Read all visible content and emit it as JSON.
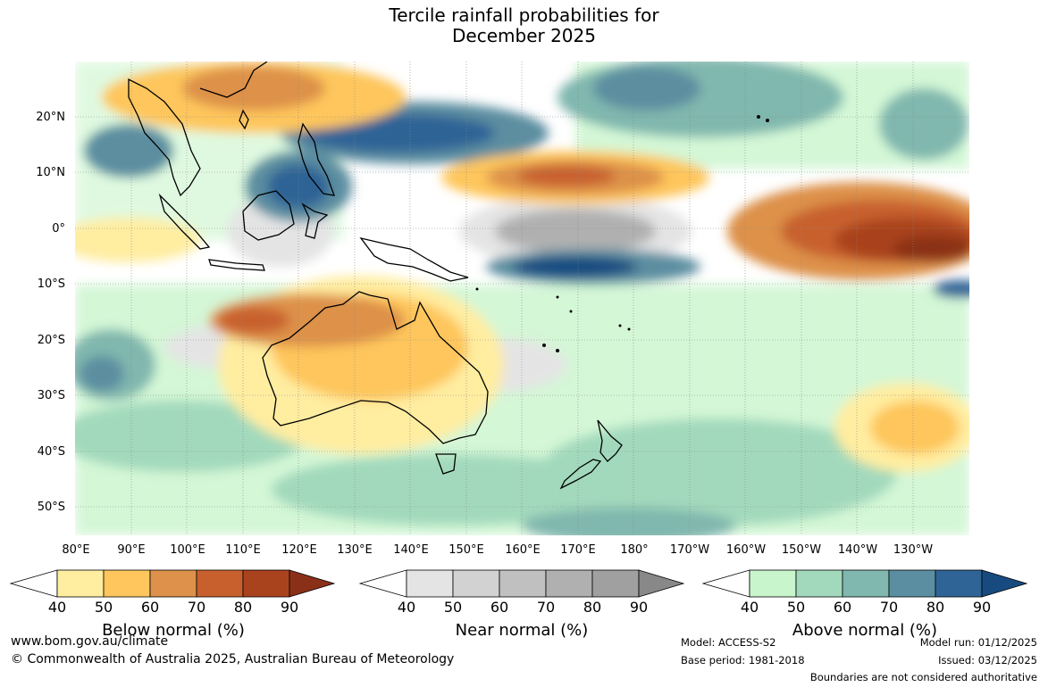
{
  "title": {
    "line1": "Tercile rainfall probabilities for",
    "line2": "December 2025"
  },
  "map": {
    "lat_ticks": [
      "20°N",
      "10°N",
      "0°",
      "10°S",
      "20°S",
      "30°S",
      "40°S",
      "50°S"
    ],
    "lon_ticks": [
      "80°E",
      "90°E",
      "100°E",
      "110°E",
      "120°E",
      "130°E",
      "140°E",
      "150°E",
      "160°E",
      "170°E",
      "180°",
      "170°W",
      "160°W",
      "150°W",
      "140°W",
      "130°W"
    ]
  },
  "colorbars": [
    {
      "label": "Below normal (%)",
      "ticks": [
        "40",
        "50",
        "60",
        "70",
        "80",
        "90"
      ],
      "colors": [
        "#ffeda0",
        "#fec65c",
        "#dd914a",
        "#c8602e",
        "#a9431e",
        "#8b3018"
      ]
    },
    {
      "label": "Near normal (%)",
      "ticks": [
        "40",
        "50",
        "60",
        "70",
        "80",
        "90"
      ],
      "colors": [
        "#e4e4e4",
        "#d2d2d2",
        "#c0c0c0",
        "#b0b0b0",
        "#a0a0a0",
        "#888888"
      ]
    },
    {
      "label": "Above normal (%)",
      "ticks": [
        "40",
        "50",
        "60",
        "70",
        "80",
        "90"
      ],
      "colors": [
        "#c9f5cc",
        "#a2d9bc",
        "#80b7ae",
        "#5b8ea0",
        "#2f6496",
        "#174b80"
      ]
    }
  ],
  "footer": {
    "website": "www.bom.gov.au/climate",
    "copyright": "© Commonwealth of Australia 2025, Australian Bureau of Meteorology",
    "model": "Model: ACCESS-S2",
    "base_period": "Base period: 1981-2018",
    "model_run": "Model run: 01/12/2025",
    "issued": "Issued: 03/12/2025",
    "disclaimer": "Boundaries are not considered authoritative"
  }
}
